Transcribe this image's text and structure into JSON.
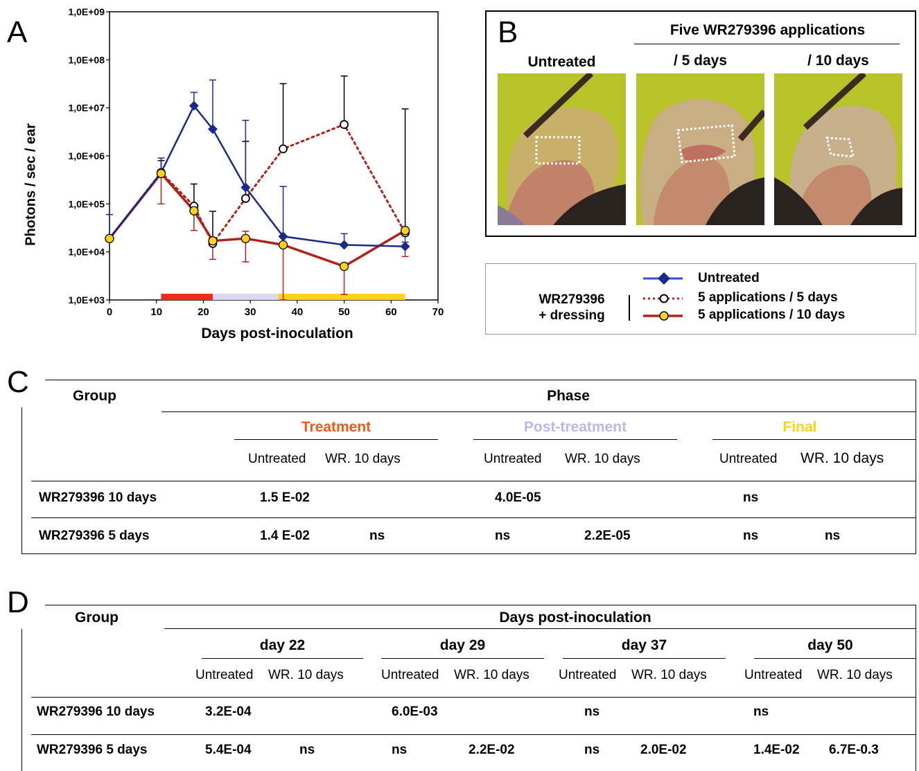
{
  "panels": {
    "a": "A",
    "b": "B",
    "c": "C",
    "d": "D"
  },
  "chart_data": {
    "type": "line",
    "xlabel": "Days post-inoculation",
    "ylabel": "Photons / sec / ear",
    "xlim": [
      0,
      70
    ],
    "ylim": [
      1000,
      1000000000
    ],
    "yscale": "log",
    "x_ticks": [
      "0",
      "10",
      "20",
      "30",
      "40",
      "50",
      "60",
      "70"
    ],
    "y_ticks": [
      "1,0E+03",
      "1,0E+04",
      "1,0E+05",
      "1,0E+06",
      "1,0E+07",
      "1,0E+08",
      "1,0E+09"
    ],
    "phase_bar": [
      {
        "from": 11,
        "to": 22,
        "color": "#ee2a1a"
      },
      {
        "from": 22,
        "to": 36,
        "color": "#d8d8ee"
      },
      {
        "from": 36,
        "to": 63,
        "color": "#ffd21a"
      }
    ],
    "series": [
      {
        "key": "untreated",
        "color": "#1a2a8c",
        "points": [
          [
            0,
            19000
          ],
          [
            11,
            450000
          ],
          [
            18,
            11000000
          ],
          [
            22,
            3600000
          ],
          [
            29,
            220000
          ],
          [
            37,
            21000
          ],
          [
            50,
            14000
          ],
          [
            63,
            13000
          ]
        ],
        "errors": [
          [
            0,
            60000
          ],
          [
            11,
            900000
          ],
          [
            18,
            21000000
          ],
          [
            22,
            38000000
          ],
          [
            29,
            5500000
          ],
          [
            37,
            230000
          ],
          [
            50,
            24000
          ],
          [
            63,
            16000
          ]
        ]
      },
      {
        "key": "five_days",
        "color": "#b0231a",
        "points": [
          [
            0,
            19000
          ],
          [
            11,
            450000
          ],
          [
            18,
            90000
          ],
          [
            22,
            15000
          ],
          [
            29,
            130000
          ],
          [
            37,
            1400000
          ],
          [
            50,
            4500000
          ],
          [
            63,
            25000
          ]
        ],
        "errors": [
          [
            11,
            800000
          ],
          [
            18,
            260000
          ],
          [
            22,
            70000
          ],
          [
            29,
            2000000
          ],
          [
            37,
            32000000
          ],
          [
            50,
            46000000
          ],
          [
            63,
            9500000
          ]
        ]
      },
      {
        "key": "ten_days",
        "color": "#b0231a",
        "points": [
          [
            0,
            19000
          ],
          [
            11,
            430000
          ],
          [
            18,
            72000
          ],
          [
            22,
            17000
          ],
          [
            29,
            19000
          ],
          [
            37,
            14000
          ],
          [
            50,
            5000
          ],
          [
            63,
            28000
          ]
        ],
        "errors_low": [
          [
            11,
            100000
          ],
          [
            18,
            28000
          ],
          [
            22,
            7000
          ],
          [
            29,
            6200
          ],
          [
            37,
            1000
          ],
          [
            50,
            1300
          ],
          [
            63,
            8000
          ]
        ],
        "errors_high": [
          [
            29,
            27000
          ]
        ]
      }
    ]
  },
  "photo_panel": {
    "heading": "Five  WR279396  applications",
    "labels": [
      "Untreated",
      "/ 5 days",
      "/ 10 days"
    ]
  },
  "legend": {
    "group_line1": "WR279396",
    "group_line2": "+ dressing",
    "items": [
      "Untreated",
      "5 applications / 5 days",
      "5 applications / 10 days"
    ]
  },
  "table_c": {
    "group": "Group",
    "phase": "Phase",
    "phases": [
      {
        "label": "Treatment",
        "color": "#ee5a1a"
      },
      {
        "label": "Post-treatment",
        "color": "#b9b9ee"
      },
      {
        "label": "Final",
        "color": "#ffd21a"
      }
    ],
    "sub_untreated": "Untreated",
    "sub_wr": "WR. 10 days",
    "rows": [
      {
        "label": "WR279396  10 days",
        "values": [
          "1.5 E-02",
          "",
          "4.0E-05",
          "",
          "ns",
          ""
        ]
      },
      {
        "label": "WR279396  5 days",
        "values": [
          "1.4 E-02",
          "ns",
          "ns",
          "2.2E-05",
          "ns",
          "ns"
        ]
      }
    ]
  },
  "table_d": {
    "group": "Group",
    "heading": "Days post-inoculation",
    "days": [
      "day 22",
      "day 29",
      "day 37",
      "day 50"
    ],
    "sub_untreated": "Untreated",
    "sub_wr": "WR. 10 days",
    "rows": [
      {
        "label": "WR279396  10 days",
        "values": [
          "3.2E-04",
          "",
          "6.0E-03",
          "",
          "ns",
          "",
          "ns",
          ""
        ]
      },
      {
        "label": "WR279396  5 days",
        "values": [
          "5.4E-04",
          "ns",
          "ns",
          "2.2E-02",
          "ns",
          "2.0E-02",
          "1.4E-02",
          "6.7E-0.3"
        ]
      }
    ]
  }
}
